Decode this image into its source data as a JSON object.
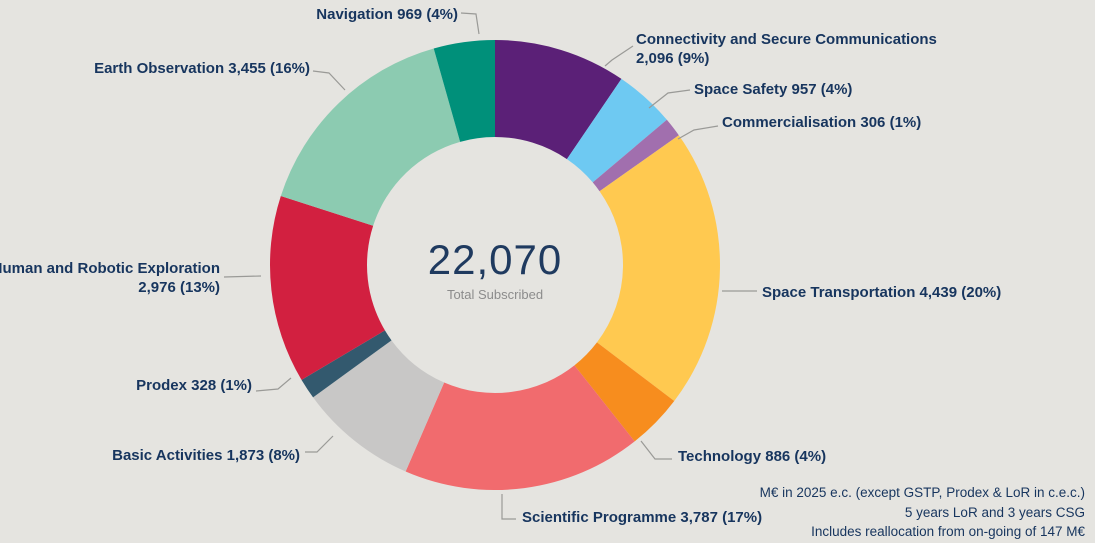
{
  "palette": {
    "background": "#e5e4e0",
    "label_text": "#17355e",
    "center_total_text": "#1f3a5f",
    "center_sublabel_text": "#8c8c8c",
    "leader_line": "#9a9a97"
  },
  "chart_data": {
    "type": "pie",
    "subtype": "donut",
    "total": 22070,
    "center": {
      "total_display": "22,070",
      "sublabel": "Total Subscribed"
    },
    "slices": [
      {
        "name": "Connectivity and Secure Communications",
        "value": 2096,
        "pct": 9,
        "color": "#5b2077",
        "display_lines": [
          "Connectivity and Secure Communications",
          "2,096 (9%)"
        ]
      },
      {
        "name": "Space Safety",
        "value": 957,
        "pct": 4,
        "color": "#6ec9f2",
        "display_lines": [
          "Space Safety 957 (4%)"
        ]
      },
      {
        "name": "Commercialisation",
        "value": 306,
        "pct": 1,
        "color": "#a16fae",
        "display_lines": [
          "Commercialisation 306 (1%)"
        ]
      },
      {
        "name": "Space Transportation",
        "value": 4439,
        "pct": 20,
        "color": "#ffc950",
        "display_lines": [
          "Space Transportation 4,439 (20%)"
        ]
      },
      {
        "name": "Technology",
        "value": 886,
        "pct": 4,
        "color": "#f78d1e",
        "display_lines": [
          "Technology 886 (4%)"
        ]
      },
      {
        "name": "Scientific Programme",
        "value": 3787,
        "pct": 17,
        "color": "#f16b6e",
        "display_lines": [
          "Scientific Programme 3,787 (17%)"
        ]
      },
      {
        "name": "Basic Activities",
        "value": 1873,
        "pct": 8,
        "color": "#c8c7c6",
        "display_lines": [
          "Basic Activities 1,873 (8%)"
        ]
      },
      {
        "name": "Prodex",
        "value": 328,
        "pct": 1,
        "color": "#33596e",
        "display_lines": [
          "Prodex 328 (1%)"
        ]
      },
      {
        "name": "Human and Robotic Exploration",
        "value": 2976,
        "pct": 13,
        "color": "#d22040",
        "display_lines": [
          "Human and Robotic Exploration",
          "2,976 (13%)"
        ]
      },
      {
        "name": "Earth Observation",
        "value": 3455,
        "pct": 16,
        "color": "#8ccbb1",
        "display_lines": [
          "Earth Observation 3,455 (16%)"
        ]
      },
      {
        "name": "Navigation",
        "value": 969,
        "pct": 4,
        "color": "#00907a",
        "display_lines": [
          "Navigation 969 (4%)"
        ]
      }
    ],
    "legend_position": "none",
    "grid": false,
    "footnotes": [
      "M€ in 2025 e.c. (except GSTP, Prodex & LoR in c.e.c.)",
      "5 years LoR and 3 years CSG",
      "Includes reallocation from on-going of 147 M€"
    ]
  }
}
